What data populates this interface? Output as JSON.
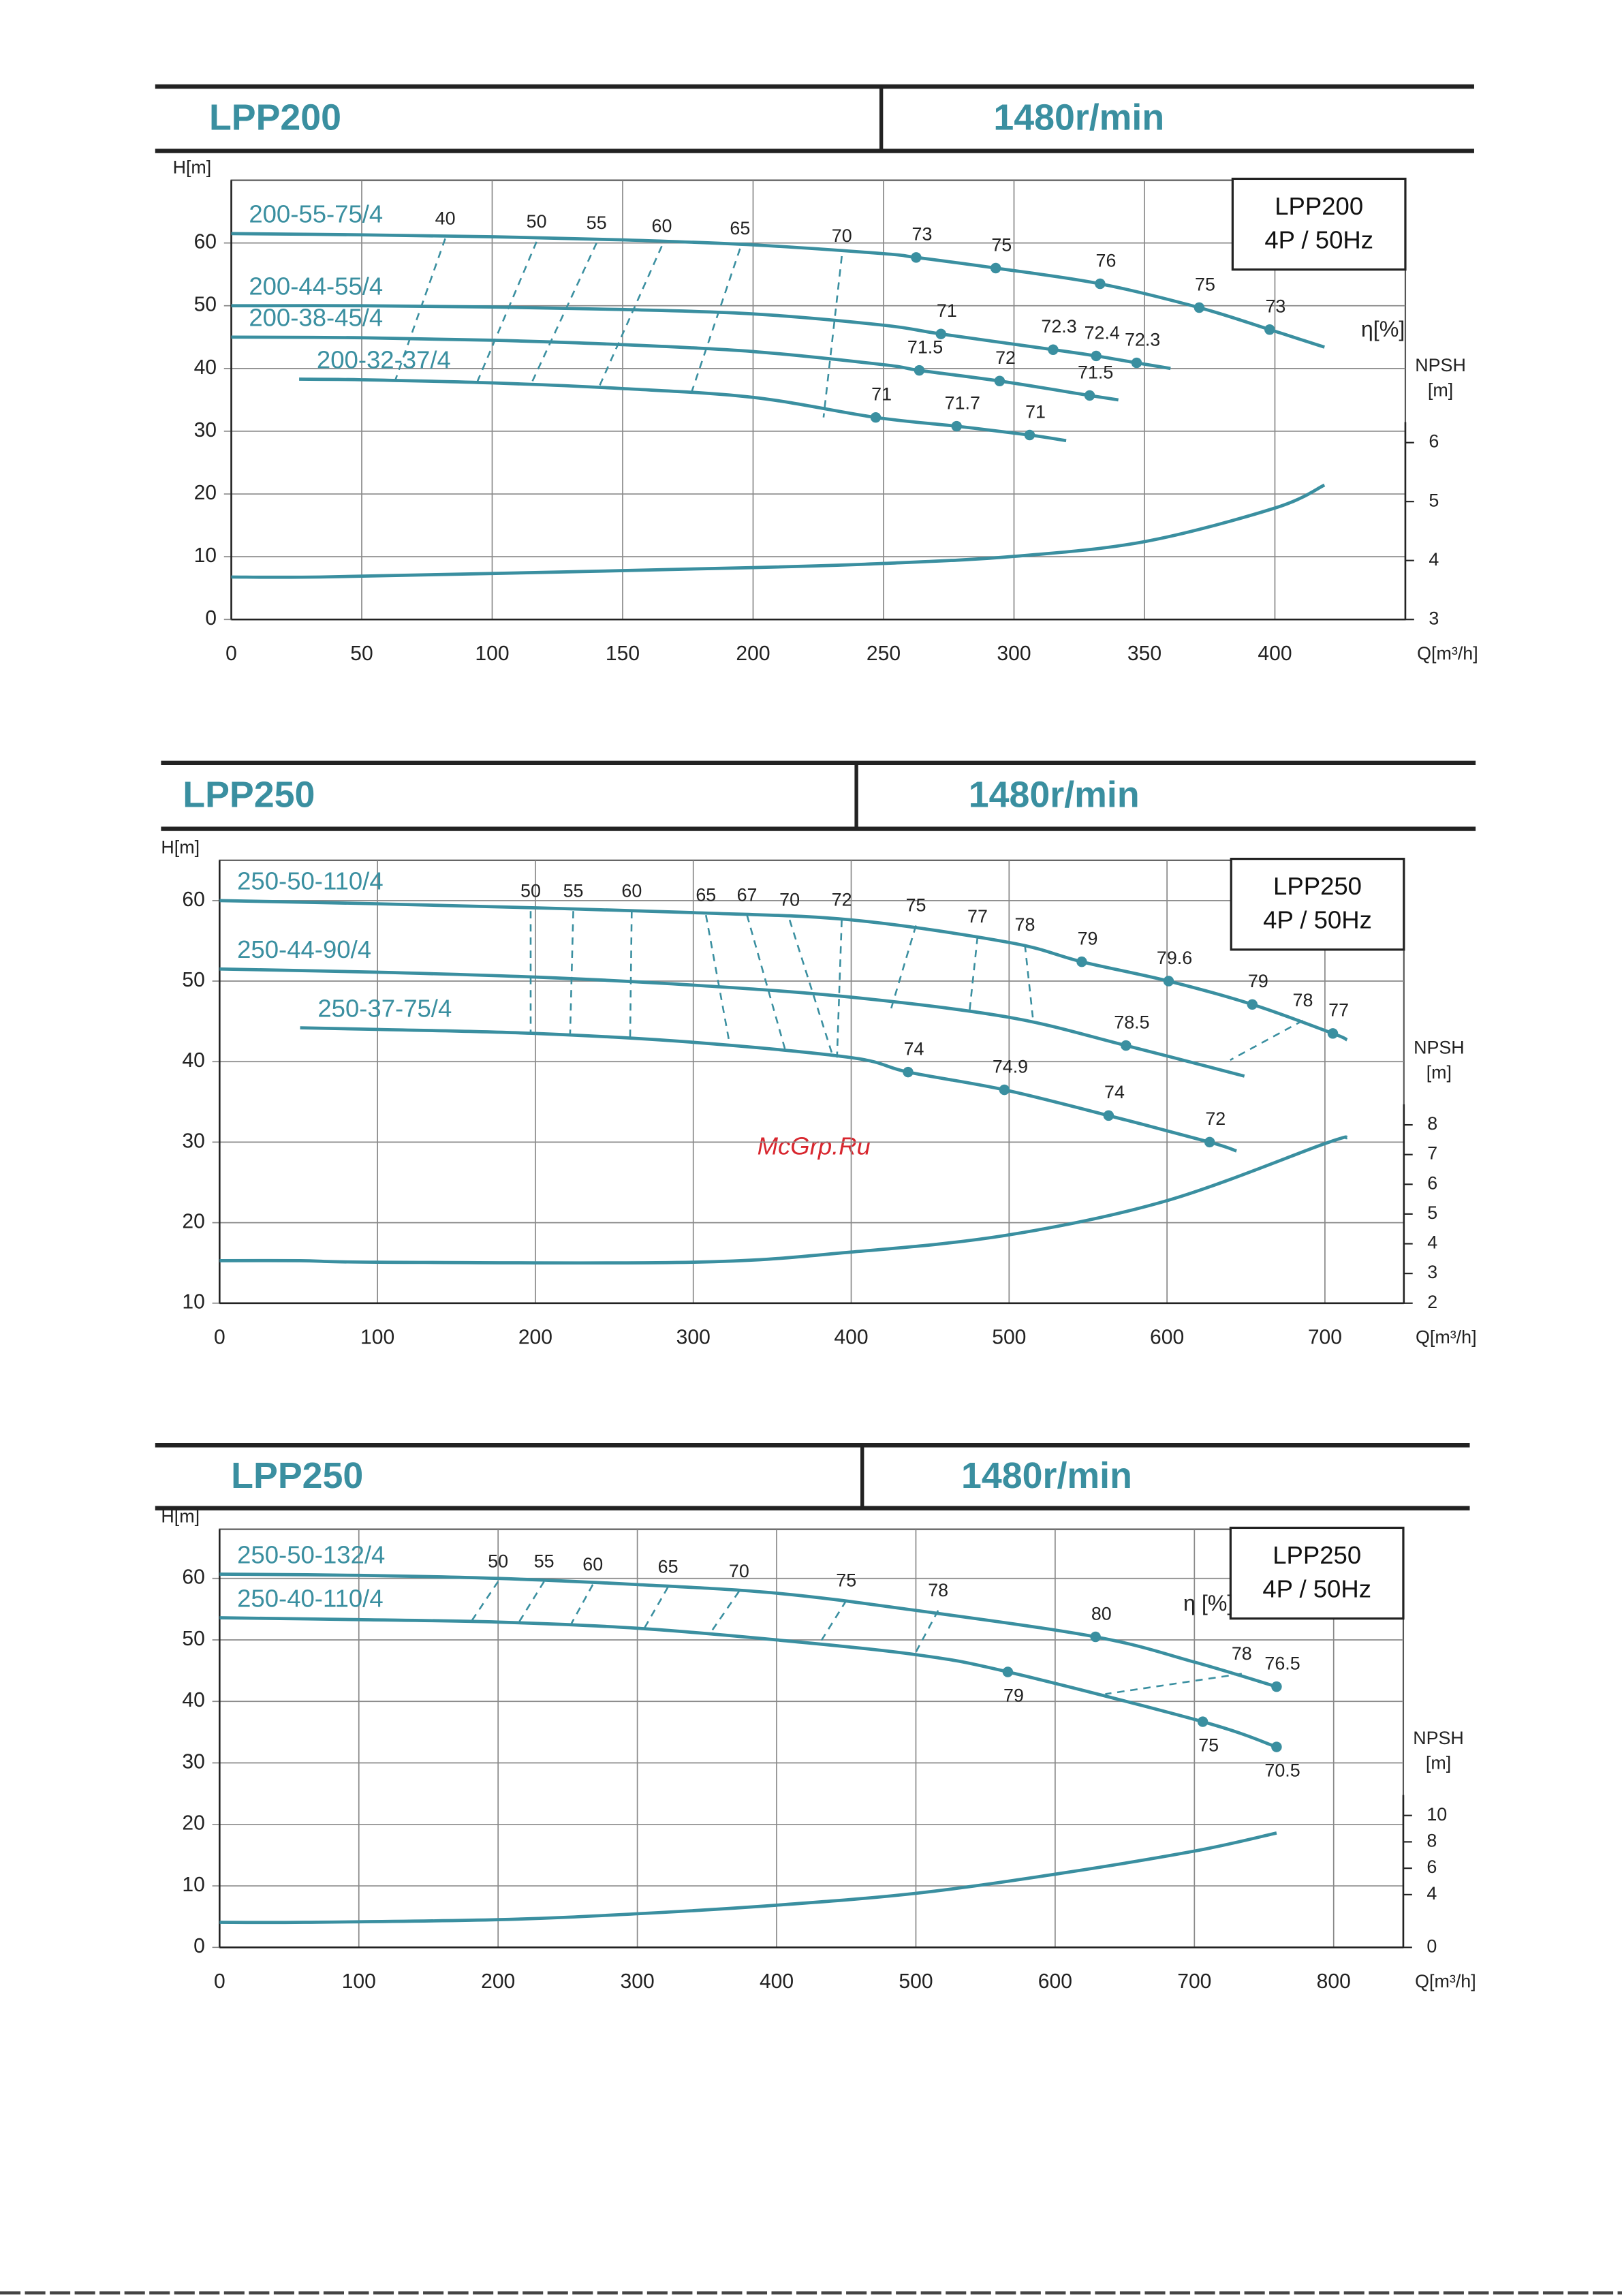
{
  "watermark": "McGrp.Ru",
  "chart_data": [
    {
      "type": "line",
      "header": {
        "model": "LPP200",
        "speed": "1480r/min"
      },
      "box": [
        "LPP200",
        "4P / 50Hz"
      ],
      "ylabel": "H[m]",
      "xlabel": "Q[m³/h]",
      "y2label": [
        "NPSH",
        "[m]"
      ],
      "xlim": [
        0,
        450
      ],
      "xticks": [
        0,
        50,
        100,
        150,
        200,
        250,
        300,
        350,
        400
      ],
      "ylim": [
        0,
        70
      ],
      "yticks": [
        0,
        10,
        20,
        30,
        40,
        50,
        60
      ],
      "y2lim": [
        3,
        10.45
      ],
      "y2ticks": [
        3,
        4,
        5,
        6
      ],
      "grid": true,
      "color": "#3a8fa0",
      "series": [
        {
          "name": "200-55-75/4",
          "x": [
            0,
            50,
            100,
            150,
            200,
            250,
            262.5,
            293,
            333,
            371,
            398,
            419
          ],
          "values": [
            61.5,
            61.3,
            61,
            60.5,
            59.7,
            58.3,
            57.7,
            56,
            53.5,
            49.7,
            46.2,
            43.4
          ],
          "efficiency": [
            null,
            null,
            null,
            null,
            null,
            null,
            73,
            75,
            76,
            75,
            73,
            null
          ]
        },
        {
          "name": "200-44-55/4",
          "x": [
            0,
            50,
            100,
            150,
            200,
            250,
            272,
            315,
            331.5,
            347,
            360
          ],
          "values": [
            50,
            50,
            49.8,
            49.4,
            48.7,
            46.9,
            45.5,
            43,
            42,
            40.9,
            40
          ],
          "efficiency": [
            null,
            null,
            null,
            null,
            null,
            null,
            71,
            72.3,
            72.4,
            72.3,
            null
          ]
        },
        {
          "name": "200-38-45/4",
          "x": [
            0,
            50,
            100,
            150,
            200,
            250,
            263.7,
            294.5,
            329,
            340
          ],
          "values": [
            45,
            44.9,
            44.5,
            43.8,
            42.7,
            40.6,
            39.7,
            38,
            35.7,
            35
          ],
          "efficiency": [
            null,
            null,
            null,
            null,
            null,
            null,
            71.5,
            72,
            71.5,
            null
          ]
        },
        {
          "name": "200-32-37/4",
          "x": [
            26,
            50,
            100,
            150,
            200,
            247,
            278,
            306,
            320
          ],
          "values": [
            38.3,
            38.2,
            37.7,
            36.8,
            35.4,
            32.2,
            30.8,
            29.4,
            28.5
          ],
          "efficiency": [
            null,
            null,
            null,
            null,
            null,
            71,
            71.7,
            71,
            null
          ]
        }
      ],
      "npsh": {
        "axis": "y2",
        "x": [
          0,
          34,
          100,
          200,
          250,
          300,
          350,
          400,
          419
        ],
        "values": [
          3.72,
          3.72,
          3.78,
          3.88,
          3.95,
          4.07,
          4.32,
          4.89,
          5.28
        ]
      },
      "iso_efficiency": [
        {
          "value": 40,
          "x": [
            82,
            63
          ],
          "y": [
            60.7,
            38.3
          ]
        },
        {
          "value": 50,
          "x": [
            117,
            94
          ],
          "y": [
            60.2,
            37.6
          ]
        },
        {
          "value": 55,
          "x": [
            140,
            115
          ],
          "y": [
            60,
            37.6
          ]
        },
        {
          "value": 60,
          "x": [
            165,
            141
          ],
          "y": [
            59.5,
            37.1
          ]
        },
        {
          "value": 65,
          "x": [
            195,
            176
          ],
          "y": [
            59.1,
            35.7
          ]
        },
        {
          "value": 70,
          "x": [
            234,
            227
          ],
          "y": [
            57.9,
            32.2
          ]
        }
      ],
      "eta_label": {
        "text": "η[%]",
        "x": 433,
        "y": 46
      }
    },
    {
      "type": "line",
      "header": {
        "model": "LPP250",
        "speed": "1480r/min"
      },
      "box": [
        "LPP250",
        "4P / 50Hz"
      ],
      "ylabel": "H[m]",
      "xlabel": "Q[m³/h]",
      "y2label": [
        "NPSH",
        "[m]"
      ],
      "xlim": [
        0,
        750
      ],
      "xticks": [
        0,
        100,
        200,
        300,
        400,
        500,
        600,
        700
      ],
      "ylim": [
        10,
        65
      ],
      "yticks": [
        10,
        20,
        30,
        40,
        50,
        60
      ],
      "y2lim": [
        2,
        16.9
      ],
      "y2ticks": [
        2,
        3,
        4,
        5,
        6,
        7,
        8
      ],
      "grid": true,
      "color": "#3a8fa0",
      "series": [
        {
          "name": "250-50-110/4",
          "x": [
            0,
            100,
            200,
            300,
            400,
            500,
            546,
            601,
            654,
            705,
            714
          ],
          "values": [
            60,
            59.6,
            59.1,
            58.5,
            57.6,
            54.8,
            52.4,
            50,
            47.1,
            43.5,
            42.7
          ],
          "efficiency": [
            null,
            null,
            null,
            null,
            null,
            null,
            79,
            79.6,
            79,
            77,
            null
          ]
        },
        {
          "name": "250-44-90/4",
          "x": [
            0,
            100,
            200,
            300,
            400,
            500,
            574,
            649
          ],
          "values": [
            51.5,
            51.1,
            50.5,
            49.5,
            48,
            45.5,
            42,
            38.2
          ],
          "efficiency": [
            null,
            null,
            null,
            null,
            null,
            null,
            78.5,
            null
          ]
        },
        {
          "name": "250-37-75/4",
          "x": [
            51,
            100,
            200,
            300,
            400,
            436,
            497,
            563,
            627,
            644
          ],
          "values": [
            44.2,
            44,
            43.5,
            42.4,
            40.5,
            38.7,
            36.5,
            33.3,
            30,
            28.9
          ],
          "efficiency": [
            null,
            null,
            null,
            null,
            null,
            74,
            74.9,
            74,
            72,
            null
          ]
        }
      ],
      "npsh": {
        "axis": "y2",
        "x": [
          0,
          51,
          100,
          300,
          400,
          500,
          600,
          700,
          714
        ],
        "values": [
          3.43,
          3.43,
          3.38,
          3.38,
          3.72,
          4.3,
          5.45,
          7.37,
          7.57
        ]
      },
      "iso_efficiency": [
        {
          "value": 50,
          "x": [
            197,
            197
          ],
          "y": [
            58.7,
            43.5
          ]
        },
        {
          "value": 55,
          "x": [
            224,
            222
          ],
          "y": [
            58.7,
            43.5
          ]
        },
        {
          "value": 60,
          "x": [
            261,
            260
          ],
          "y": [
            58.7,
            43.1
          ]
        },
        {
          "value": 65,
          "x": [
            308,
            323
          ],
          "y": [
            58.2,
            42.2
          ]
        },
        {
          "value": 67,
          "x": [
            334,
            358
          ],
          "y": [
            58.2,
            41.6
          ]
        },
        {
          "value": 70,
          "x": [
            361,
            388
          ],
          "y": [
            57.6,
            40.9
          ]
        },
        {
          "value": 72,
          "x": [
            394,
            391
          ],
          "y": [
            57.6,
            40.5
          ]
        },
        {
          "value": 75,
          "x": [
            441,
            425
          ],
          "y": [
            56.9,
            46.4
          ]
        },
        {
          "value": 77,
          "x": [
            480,
            475
          ],
          "y": [
            55.5,
            46.4
          ]
        },
        {
          "value": 78,
          "x": [
            510,
            515
          ],
          "y": [
            54.5,
            45.5
          ]
        },
        {
          "value": 78,
          "x": [
            686,
            640
          ],
          "y": [
            45.1,
            40.2
          ]
        }
      ]
    },
    {
      "type": "line",
      "header": {
        "model": "LPP250",
        "speed": "1480r/min"
      },
      "box": [
        "LPP250",
        "4P / 50Hz"
      ],
      "ylabel": "H[m]",
      "xlabel": "Q[m³/h]",
      "y2label": [
        "NPSH",
        "[m]"
      ],
      "xlim": [
        0,
        850
      ],
      "xticks": [
        0,
        100,
        200,
        300,
        400,
        500,
        600,
        700,
        800
      ],
      "ylim": [
        0,
        68
      ],
      "yticks": [
        0,
        10,
        20,
        30,
        40,
        50,
        60
      ],
      "y2lim": [
        0,
        31.7
      ],
      "y2ticks": [
        0,
        4,
        6,
        8,
        10
      ],
      "grid": true,
      "color": "#3a8fa0",
      "series": [
        {
          "name": "250-50-132/4",
          "x": [
            0,
            100,
            200,
            300,
            400,
            500,
            629,
            700,
            759
          ],
          "values": [
            60.7,
            60.5,
            60,
            59,
            57.6,
            54.8,
            50.5,
            46.4,
            42.4
          ],
          "efficiency": [
            null,
            null,
            null,
            null,
            null,
            null,
            80,
            null,
            76.5
          ]
        },
        {
          "name": "250-40-110/4",
          "x": [
            0,
            100,
            200,
            300,
            400,
            500,
            566,
            706,
            759
          ],
          "values": [
            53.6,
            53.3,
            52.9,
            51.9,
            50,
            47.6,
            44.8,
            36.7,
            32.6
          ],
          "efficiency": [
            null,
            null,
            null,
            null,
            null,
            null,
            79,
            75,
            70.5
          ],
          "efficiency_label_position": "below"
        }
      ],
      "npsh": {
        "axis": "y2",
        "x": [
          0,
          61,
          200,
          300,
          400,
          500,
          600,
          700,
          759
        ],
        "values": [
          1.9,
          1.9,
          2.1,
          2.55,
          3.2,
          4.1,
          5.55,
          7.3,
          8.67
        ]
      },
      "iso_efficiency": [
        {
          "value": 50,
          "x": [
            200,
            181
          ],
          "y": [
            59.5,
            53.1
          ]
        },
        {
          "value": 55,
          "x": [
            233,
            215
          ],
          "y": [
            59.5,
            52.9
          ]
        },
        {
          "value": 60,
          "x": [
            268,
            252
          ],
          "y": [
            59,
            52.4
          ]
        },
        {
          "value": 65,
          "x": [
            322,
            305
          ],
          "y": [
            58.6,
            51.9
          ]
        },
        {
          "value": 70,
          "x": [
            373,
            352
          ],
          "y": [
            57.9,
            51
          ]
        },
        {
          "value": 75,
          "x": [
            450,
            431
          ],
          "y": [
            56.4,
            49.5
          ]
        },
        {
          "value": 78,
          "x": [
            516,
            499
          ],
          "y": [
            54.8,
            47.6
          ]
        },
        {
          "value": 78,
          "x": [
            734,
            636
          ],
          "y": [
            44.5,
            41.2
          ]
        }
      ],
      "eta_label": {
        "text": "η [%]",
        "x": 692,
        "y": 55.7
      }
    }
  ]
}
